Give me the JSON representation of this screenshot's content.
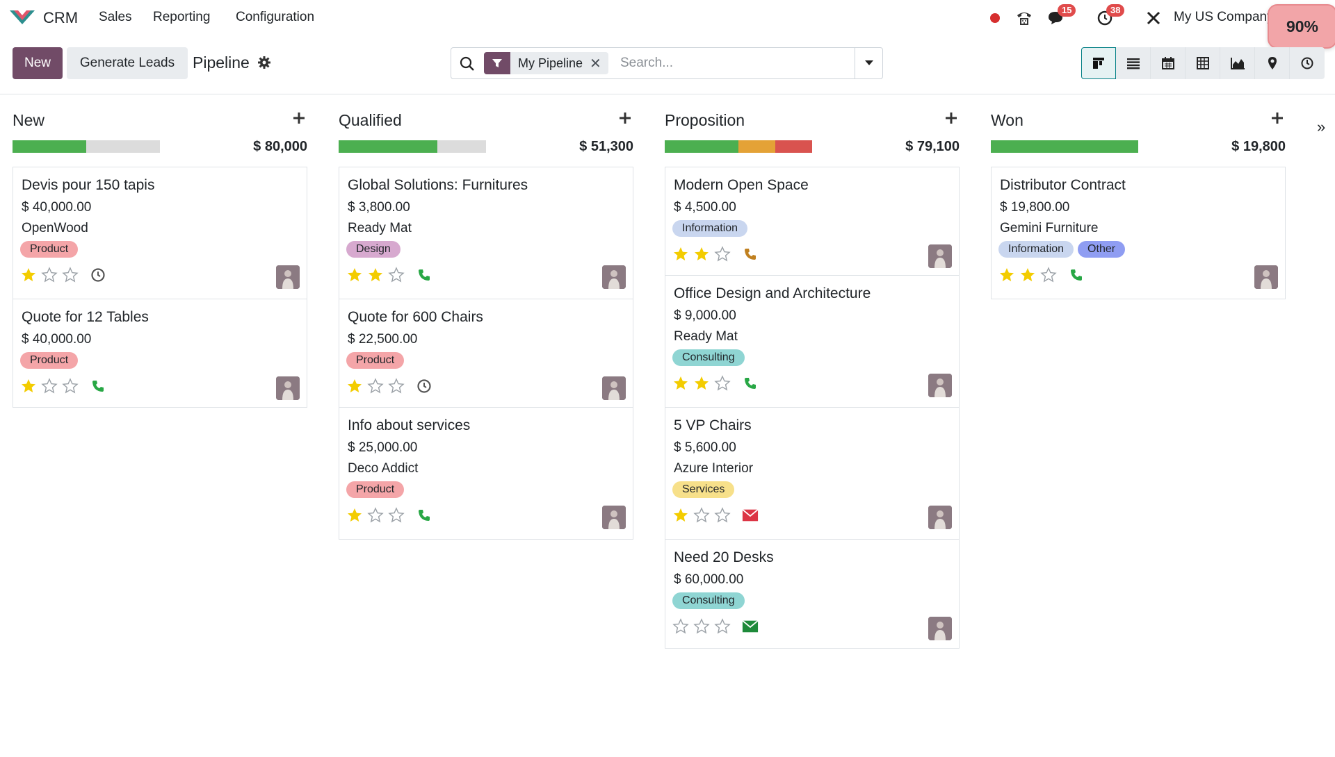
{
  "navbar": {
    "app_name": "CRM",
    "menus": [
      "Sales",
      "Reporting",
      "Configuration"
    ],
    "chat_count": "15",
    "activity_count": "38",
    "company": "My US Company",
    "zoom": "90%"
  },
  "control": {
    "new_label": "New",
    "generate_label": "Generate Leads",
    "breadcrumb": "Pipeline",
    "facet_label": "My Pipeline",
    "search_placeholder": "Search..."
  },
  "columns": [
    {
      "title": "New",
      "sum": "$ 80,000",
      "cards": [
        {
          "title": "Devis pour 150 tapis",
          "amount": "$ 40,000.00",
          "partner": "OpenWood",
          "tags": [
            "Product"
          ]
        },
        {
          "title": "Quote for 12 Tables",
          "amount": "$ 40,000.00",
          "partner": "",
          "tags": [
            "Product"
          ]
        }
      ]
    },
    {
      "title": "Qualified",
      "sum": "$ 51,300",
      "cards": [
        {
          "title": "Global Solutions: Furnitures",
          "amount": "$ 3,800.00",
          "partner": "Ready Mat",
          "tags": [
            "Design"
          ]
        },
        {
          "title": "Quote for 600 Chairs",
          "amount": "$ 22,500.00",
          "partner": "",
          "tags": [
            "Product"
          ]
        },
        {
          "title": "Info about services",
          "amount": "$ 25,000.00",
          "partner": "Deco Addict",
          "tags": [
            "Product"
          ]
        }
      ]
    },
    {
      "title": "Proposition",
      "sum": "$ 79,100",
      "cards": [
        {
          "title": "Modern Open Space",
          "amount": "$ 4,500.00",
          "partner": "",
          "tags": [
            "Information"
          ]
        },
        {
          "title": "Office Design and Architecture",
          "amount": "$ 9,000.00",
          "partner": "Ready Mat",
          "tags": [
            "Consulting"
          ]
        },
        {
          "title": "5 VP Chairs",
          "amount": "$ 5,600.00",
          "partner": "Azure Interior",
          "tags": [
            "Services"
          ]
        },
        {
          "title": "Need 20 Desks",
          "amount": "$ 60,000.00",
          "partner": "",
          "tags": [
            "Consulting"
          ]
        }
      ]
    },
    {
      "title": "Won",
      "sum": "$ 19,800",
      "cards": [
        {
          "title": "Distributor Contract",
          "amount": "$ 19,800.00",
          "partner": "Gemini Furniture",
          "tags": [
            "Information",
            "Other"
          ]
        }
      ]
    }
  ],
  "colors": {
    "brand": "#714b67",
    "progress_green": "#4caf50",
    "progress_orange": "#e4a236",
    "progress_red": "#d9534f",
    "star": "#f3cc00",
    "phone_green": "#28a745",
    "mail_red": "#dc3545",
    "tag_product": "#f4a5a8",
    "tag_design": "#d7a9cf",
    "tag_information": "#c9d6ef",
    "tag_consulting": "#8fd5d3",
    "tag_services": "#f7e08a",
    "tag_other": "#8f9df2"
  },
  "progress_fractions": [
    {
      "column": "New",
      "green": 0.5
    },
    {
      "column": "Qualified",
      "green": 0.67
    },
    {
      "column": "Proposition",
      "green": 0.5,
      "orange": 0.25,
      "red": 0.25
    },
    {
      "column": "Won",
      "green": 1.0
    }
  ],
  "card_states": [
    [
      "1 star, clock",
      "1 star, phone"
    ],
    [
      "2 stars, phone",
      "1 star, clock",
      "1 star, phone"
    ],
    [
      "2 stars, phone (orange)",
      "2 stars, phone",
      "1 star, mail (red)",
      "0 stars, mail (green)"
    ],
    [
      "2 stars, phone"
    ]
  ],
  "icons": [
    "search-icon",
    "filter-icon",
    "gear-icon",
    "plus-icon",
    "star-icon",
    "clock-icon",
    "phone-icon",
    "envelope-icon",
    "kanban-icon",
    "list-icon",
    "calendar-icon",
    "pivot-icon",
    "graph-icon",
    "map-pin-icon",
    "activity-icon"
  ]
}
